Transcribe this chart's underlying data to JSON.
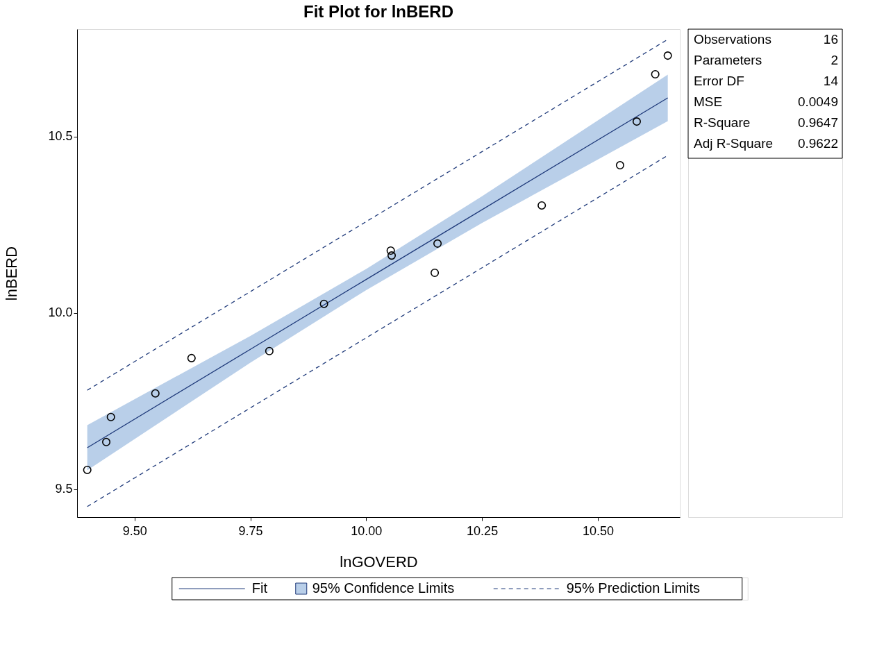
{
  "chart_data": {
    "type": "line",
    "title": "Fit Plot for lnBERD",
    "xlabel": "lnGOVERD",
    "ylabel": "lnBERD",
    "xlim": [
      9.376,
      10.677
    ],
    "ylim": [
      9.421,
      10.805
    ],
    "xticks": [
      {
        "value": 9.5,
        "label": "9.50"
      },
      {
        "value": 9.75,
        "label": "9.75"
      },
      {
        "value": 10.0,
        "label": "10.00"
      },
      {
        "value": 10.25,
        "label": "10.25"
      },
      {
        "value": 10.5,
        "label": "10.50"
      }
    ],
    "yticks": [
      9.5,
      {
        "value": 10.0,
        "label": "10.0"
      },
      10.5
    ],
    "grid": false,
    "legend": "bottom",
    "series": [
      {
        "name": "Fit",
        "type": "line",
        "color": "#1f3a7a",
        "line_style": "solid",
        "x": [
          9.398,
          9.75,
          10.0,
          10.25,
          10.651
        ],
        "values": [
          9.618,
          9.897,
          10.095,
          10.293,
          10.61
        ],
        "lower": [
          9.554,
          9.859,
          10.065,
          10.255,
          10.544
        ],
        "upper": [
          9.682,
          9.935,
          10.125,
          10.331,
          10.676
        ]
      },
      {
        "name": "95% Prediction Limits",
        "color": "#1f3a7a",
        "line_style": "dashed",
        "x": [
          9.398,
          10.651
        ],
        "values": [
          9.781,
          10.776
        ]
      },
      {
        "color": "#1f3a7a",
        "line_style": "dashed",
        "x": [
          9.398,
          10.651
        ],
        "values": [
          9.451,
          10.447
        ]
      },
      {
        "type": "scatter",
        "color": "#000000",
        "marker": "circle",
        "x": [
          9.398,
          9.439,
          9.449,
          9.545,
          9.623,
          9.791,
          9.909,
          10.053,
          10.055,
          10.154,
          10.148,
          10.379,
          10.548,
          10.584,
          10.624,
          10.651
        ],
        "values": [
          9.555,
          9.634,
          9.705,
          9.772,
          9.872,
          9.892,
          10.026,
          10.177,
          10.163,
          10.197,
          10.114,
          10.305,
          10.419,
          10.543,
          10.677,
          10.73
        ]
      }
    ],
    "annotations": [
      "Observations 16",
      "Parameters 2",
      "Error DF 14",
      "MSE 0.0049",
      "R-Square 0.9647",
      "Adj R-Square 0.9622",
      "95% Confidence Limits"
    ]
  }
}
